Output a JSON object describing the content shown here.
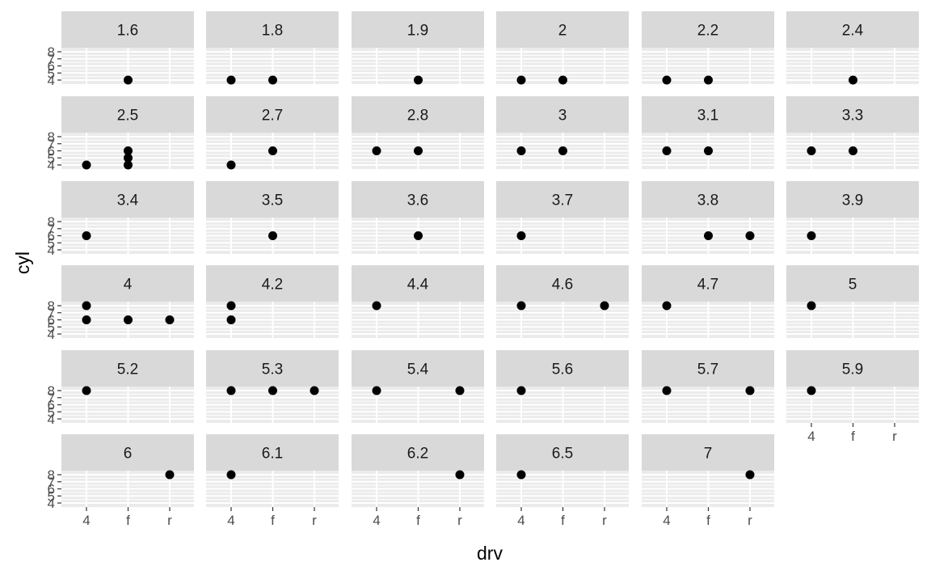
{
  "chart_data": {
    "type": "scatter",
    "facet_by": "displ",
    "xlabel": "drv",
    "ylabel": "cyl",
    "x_categories": [
      "4",
      "f",
      "r"
    ],
    "y_ticks": [
      4,
      5,
      6,
      7,
      8
    ],
    "ylim": [
      4,
      8
    ],
    "grid": true,
    "colors": {
      "panel_bg": "#ebebeb",
      "grid_major": "#ffffff",
      "strip_bg": "#d9d9d9",
      "point": "#000000",
      "tick_text": "#4d4d4d"
    },
    "facets": [
      {
        "label": "1.6",
        "points": [
          {
            "x": "f",
            "y": 4
          }
        ]
      },
      {
        "label": "1.8",
        "points": [
          {
            "x": "4",
            "y": 4
          },
          {
            "x": "f",
            "y": 4
          }
        ]
      },
      {
        "label": "1.9",
        "points": [
          {
            "x": "f",
            "y": 4
          }
        ]
      },
      {
        "label": "2",
        "points": [
          {
            "x": "4",
            "y": 4
          },
          {
            "x": "f",
            "y": 4
          }
        ]
      },
      {
        "label": "2.2",
        "points": [
          {
            "x": "4",
            "y": 4
          },
          {
            "x": "f",
            "y": 4
          }
        ]
      },
      {
        "label": "2.4",
        "points": [
          {
            "x": "f",
            "y": 4
          }
        ]
      },
      {
        "label": "2.5",
        "points": [
          {
            "x": "4",
            "y": 4
          },
          {
            "x": "f",
            "y": 4
          },
          {
            "x": "f",
            "y": 5
          },
          {
            "x": "f",
            "y": 6
          }
        ]
      },
      {
        "label": "2.7",
        "points": [
          {
            "x": "4",
            "y": 4
          },
          {
            "x": "f",
            "y": 6
          }
        ]
      },
      {
        "label": "2.8",
        "points": [
          {
            "x": "4",
            "y": 6
          },
          {
            "x": "f",
            "y": 6
          }
        ]
      },
      {
        "label": "3",
        "points": [
          {
            "x": "4",
            "y": 6
          },
          {
            "x": "f",
            "y": 6
          }
        ]
      },
      {
        "label": "3.1",
        "points": [
          {
            "x": "4",
            "y": 6
          },
          {
            "x": "f",
            "y": 6
          }
        ]
      },
      {
        "label": "3.3",
        "points": [
          {
            "x": "4",
            "y": 6
          },
          {
            "x": "f",
            "y": 6
          }
        ]
      },
      {
        "label": "3.4",
        "points": [
          {
            "x": "4",
            "y": 6
          }
        ]
      },
      {
        "label": "3.5",
        "points": [
          {
            "x": "f",
            "y": 6
          }
        ]
      },
      {
        "label": "3.6",
        "points": [
          {
            "x": "f",
            "y": 6
          }
        ]
      },
      {
        "label": "3.7",
        "points": [
          {
            "x": "4",
            "y": 6
          }
        ]
      },
      {
        "label": "3.8",
        "points": [
          {
            "x": "f",
            "y": 6
          },
          {
            "x": "r",
            "y": 6
          }
        ]
      },
      {
        "label": "3.9",
        "points": [
          {
            "x": "4",
            "y": 6
          }
        ]
      },
      {
        "label": "4",
        "points": [
          {
            "x": "4",
            "y": 6
          },
          {
            "x": "4",
            "y": 8
          },
          {
            "x": "f",
            "y": 6
          },
          {
            "x": "r",
            "y": 6
          }
        ]
      },
      {
        "label": "4.2",
        "points": [
          {
            "x": "4",
            "y": 6
          },
          {
            "x": "4",
            "y": 8
          }
        ]
      },
      {
        "label": "4.4",
        "points": [
          {
            "x": "4",
            "y": 8
          }
        ]
      },
      {
        "label": "4.6",
        "points": [
          {
            "x": "4",
            "y": 8
          },
          {
            "x": "r",
            "y": 8
          }
        ]
      },
      {
        "label": "4.7",
        "points": [
          {
            "x": "4",
            "y": 8
          }
        ]
      },
      {
        "label": "5",
        "points": [
          {
            "x": "4",
            "y": 8
          }
        ]
      },
      {
        "label": "5.2",
        "points": [
          {
            "x": "4",
            "y": 8
          }
        ]
      },
      {
        "label": "5.3",
        "points": [
          {
            "x": "4",
            "y": 8
          },
          {
            "x": "f",
            "y": 8
          },
          {
            "x": "r",
            "y": 8
          }
        ]
      },
      {
        "label": "5.4",
        "points": [
          {
            "x": "4",
            "y": 8
          },
          {
            "x": "r",
            "y": 8
          }
        ]
      },
      {
        "label": "5.6",
        "points": [
          {
            "x": "4",
            "y": 8
          }
        ]
      },
      {
        "label": "5.7",
        "points": [
          {
            "x": "4",
            "y": 8
          },
          {
            "x": "r",
            "y": 8
          }
        ]
      },
      {
        "label": "5.9",
        "points": [
          {
            "x": "4",
            "y": 8
          }
        ]
      },
      {
        "label": "6",
        "points": [
          {
            "x": "r",
            "y": 8
          }
        ]
      },
      {
        "label": "6.1",
        "points": [
          {
            "x": "4",
            "y": 8
          }
        ]
      },
      {
        "label": "6.2",
        "points": [
          {
            "x": "r",
            "y": 8
          }
        ]
      },
      {
        "label": "6.5",
        "points": [
          {
            "x": "4",
            "y": 8
          }
        ]
      },
      {
        "label": "7",
        "points": [
          {
            "x": "r",
            "y": 8
          }
        ]
      }
    ]
  }
}
